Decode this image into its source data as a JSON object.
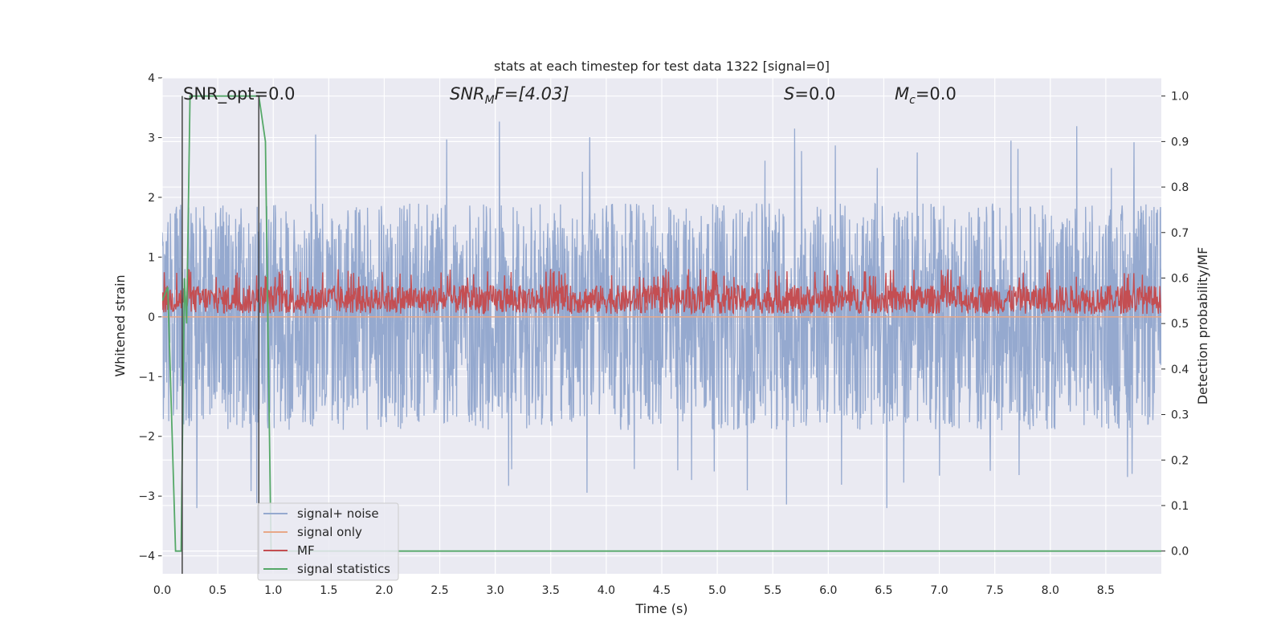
{
  "chart_data": {
    "type": "line",
    "title": "stats at each timestep for test data 1322 [signal=0]",
    "xlabel": "Time (s)",
    "ylabel": "Whitened strain",
    "ylabel_right": "Detection probability/MF",
    "xlim": [
      0.0,
      9.0
    ],
    "ylim": [
      -4.3,
      4.0
    ],
    "ylim_right": [
      -0.05,
      1.04
    ],
    "x_ticks": [
      "0.0",
      "0.5",
      "1.0",
      "1.5",
      "2.0",
      "2.5",
      "3.0",
      "3.5",
      "4.0",
      "4.5",
      "5.0",
      "5.5",
      "6.0",
      "6.5",
      "7.0",
      "7.5",
      "8.0",
      "8.5"
    ],
    "y_ticks": [
      "4",
      "3",
      "2",
      "1",
      "0",
      "−1",
      "−2",
      "−3",
      "−4"
    ],
    "y_ticks_right": [
      "1.0",
      "0.9",
      "0.8",
      "0.7",
      "0.6",
      "0.5",
      "0.4",
      "0.3",
      "0.2",
      "0.1",
      "0.0"
    ],
    "grid": true,
    "legend_position": "lower-left",
    "annotations": {
      "snr_opt": "SNR_opt=0.0",
      "snr_mf_main": "SNR",
      "snr_mf_sub": "M",
      "snr_mf_rest": "F=[4.03]",
      "s_main": "S",
      "s_rest": "=0.0",
      "mc_main": "M",
      "mc_sub": "c",
      "mc_rest": "=0.0"
    },
    "vertical_lines_x": [
      0.18,
      0.87
    ],
    "series": [
      {
        "name": "signal+ noise",
        "color": "#95a9cf",
        "typical_range": [
          -1.9,
          1.9
        ],
        "peak_range": [
          -3.2,
          3.65
        ]
      },
      {
        "name": "signal only",
        "color": "#e8a888",
        "values_y": 0.0
      },
      {
        "name": "MF",
        "color": "#c44e52",
        "typical_range": [
          0.05,
          0.65
        ]
      },
      {
        "name": "signal statistics",
        "color": "#55a868",
        "x": [
          0.0,
          0.05,
          0.12,
          0.17,
          0.2,
          0.22,
          0.25,
          0.5,
          0.87,
          0.93,
          0.98,
          1.05,
          9.0
        ],
        "y": [
          0.55,
          0.58,
          0.0,
          0.0,
          0.6,
          0.5,
          1.0,
          1.0,
          1.0,
          0.9,
          0.0,
          0.0,
          0.0
        ]
      }
    ]
  }
}
